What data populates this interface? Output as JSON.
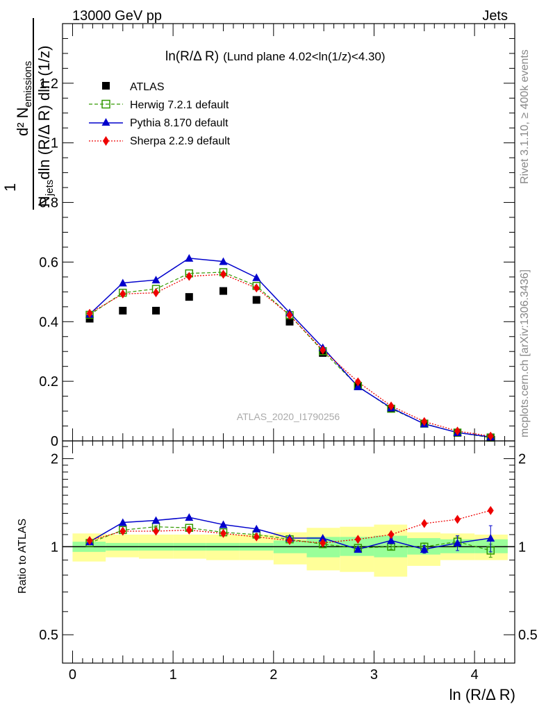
{
  "header": {
    "energy_label": "13000 GeV pp",
    "process_label": "Jets"
  },
  "side": {
    "rivet_label": "Rivet 3.1.10, ≥ 400k events",
    "mcplots_label": "mcplots.cern.ch [arXiv:1306.3436]"
  },
  "legend": {
    "atlas": "ATLAS",
    "herwig": "Herwig 7.2.1 default",
    "pythia": "Pythia 8.170 default",
    "sherpa": "Sherpa 2.2.9 default"
  },
  "colors": {
    "atlas": "#000000",
    "herwig": "#339900",
    "pythia": "#0000cc",
    "sherpa": "#ee0000",
    "band_inner": "#99ff99",
    "band_outer": "#ffff99"
  },
  "chart_data": [
    {
      "type": "scatter",
      "title": "ln(R/Δ R) (Lund plane 4.02<ln(1/z)<4.30)",
      "title_main": "ln(R/Δ R)",
      "title_sub": "(Lund plane 4.02<ln(1/z)<4.30)",
      "ylabel_num": "d² N",
      "ylabel_num_sub": "emissions",
      "ylabel_den_a": "N",
      "ylabel_den_sub": "jets",
      "ylabel_den_b": "dln (R/Δ R) dln (1/z)",
      "ylabel_one": "1",
      "watermark": "ATLAS_2020_I1790256",
      "xlim": [
        -0.1,
        4.4
      ],
      "ylim": [
        0,
        1.4
      ],
      "yticks": [
        0,
        0.2,
        0.4,
        0.6,
        0.8,
        1,
        1.2
      ],
      "ytick_labels": [
        "0",
        "0.2",
        "0.4",
        "0.6",
        "0.8",
        "1",
        "1.2"
      ],
      "x": [
        0.17,
        0.5,
        0.83,
        1.16,
        1.5,
        1.83,
        2.16,
        2.49,
        2.84,
        3.17,
        3.5,
        3.83,
        4.16
      ],
      "series": [
        {
          "name": "ATLAS",
          "values": [
            0.41,
            0.437,
            0.437,
            0.483,
            0.503,
            0.473,
            0.4,
            0.295,
            0.185,
            0.108,
            0.058,
            0.027,
            0.012
          ]
        },
        {
          "name": "Herwig 7.2.1 default",
          "values": [
            0.423,
            0.497,
            0.51,
            0.562,
            0.566,
            0.52,
            0.422,
            0.301,
            0.184,
            0.108,
            0.058,
            0.028,
            0.011
          ]
        },
        {
          "name": "Pythia 8.170 default",
          "values": [
            0.425,
            0.53,
            0.54,
            0.613,
            0.602,
            0.548,
            0.43,
            0.313,
            0.182,
            0.111,
            0.057,
            0.028,
            0.013
          ]
        },
        {
          "name": "Sherpa 2.2.9 default",
          "values": [
            0.428,
            0.493,
            0.497,
            0.552,
            0.559,
            0.513,
            0.422,
            0.305,
            0.198,
            0.117,
            0.065,
            0.033,
            0.016
          ]
        }
      ]
    },
    {
      "type": "scatter",
      "ylabel": "Ratio to ATLAS",
      "xlabel": "ln (R/Δ R)",
      "xlim": [
        -0.1,
        4.4
      ],
      "ylim": [
        0.4,
        2.3
      ],
      "log_y": true,
      "yticks": [
        0.5,
        1,
        2
      ],
      "ytick_labels": [
        "0.5",
        "1",
        "2"
      ],
      "xticks": [
        0,
        1,
        2,
        3,
        4
      ],
      "xtick_labels": [
        "0",
        "1",
        "2",
        "3",
        "4"
      ],
      "x": [
        0.17,
        0.5,
        0.83,
        1.16,
        1.5,
        1.83,
        2.16,
        2.49,
        2.84,
        3.17,
        3.5,
        3.83,
        4.16
      ],
      "bin_edges": [
        0,
        0.33,
        0.66,
        1.0,
        1.33,
        1.66,
        2.0,
        2.33,
        2.66,
        3.0,
        3.33,
        3.66,
        4.0,
        4.33
      ],
      "band_inner": [
        [
          0.96,
          1.04
        ],
        [
          0.97,
          1.03
        ],
        [
          0.97,
          1.03
        ],
        [
          0.97,
          1.03
        ],
        [
          0.97,
          1.03
        ],
        [
          0.97,
          1.03
        ],
        [
          0.95,
          1.05
        ],
        [
          0.92,
          1.08
        ],
        [
          0.93,
          1.08
        ],
        [
          0.92,
          1.09
        ],
        [
          0.94,
          1.07
        ],
        [
          0.95,
          1.06
        ],
        [
          0.95,
          1.06
        ]
      ],
      "band_outer": [
        [
          0.89,
          1.11
        ],
        [
          0.92,
          1.1
        ],
        [
          0.91,
          1.1
        ],
        [
          0.91,
          1.1
        ],
        [
          0.9,
          1.1
        ],
        [
          0.9,
          1.1
        ],
        [
          0.87,
          1.12
        ],
        [
          0.83,
          1.16
        ],
        [
          0.82,
          1.17
        ],
        [
          0.79,
          1.19
        ],
        [
          0.86,
          1.12
        ],
        [
          0.9,
          1.11
        ],
        [
          0.9,
          1.1
        ]
      ],
      "series": [
        {
          "name": "Herwig 7.2.1 default",
          "values": [
            1.03,
            1.14,
            1.17,
            1.16,
            1.12,
            1.1,
            1.06,
            1.02,
            0.99,
            1.0,
            1.0,
            1.04,
            0.97
          ],
          "errors": [
            0.01,
            0.01,
            0.01,
            0.01,
            0.01,
            0.01,
            0.01,
            0.01,
            0.01,
            0.02,
            0.03,
            0.04,
            0.05
          ]
        },
        {
          "name": "Pythia 8.170 default",
          "values": [
            1.04,
            1.21,
            1.23,
            1.26,
            1.19,
            1.15,
            1.07,
            1.07,
            0.98,
            1.05,
            0.98,
            1.03,
            1.07
          ],
          "errors": [
            0.01,
            0.01,
            0.01,
            0.01,
            0.01,
            0.01,
            0.01,
            0.01,
            0.01,
            0.02,
            0.03,
            0.06,
            0.11
          ]
        },
        {
          "name": "Sherpa 2.2.9 default",
          "values": [
            1.05,
            1.13,
            1.13,
            1.14,
            1.11,
            1.08,
            1.05,
            1.03,
            1.06,
            1.1,
            1.2,
            1.24,
            1.33
          ],
          "errors": [
            0.01,
            0.01,
            0.01,
            0.01,
            0.01,
            0.01,
            0.01,
            0.01,
            0.01,
            0.01,
            0.01,
            0.01,
            0.02
          ]
        }
      ]
    }
  ]
}
